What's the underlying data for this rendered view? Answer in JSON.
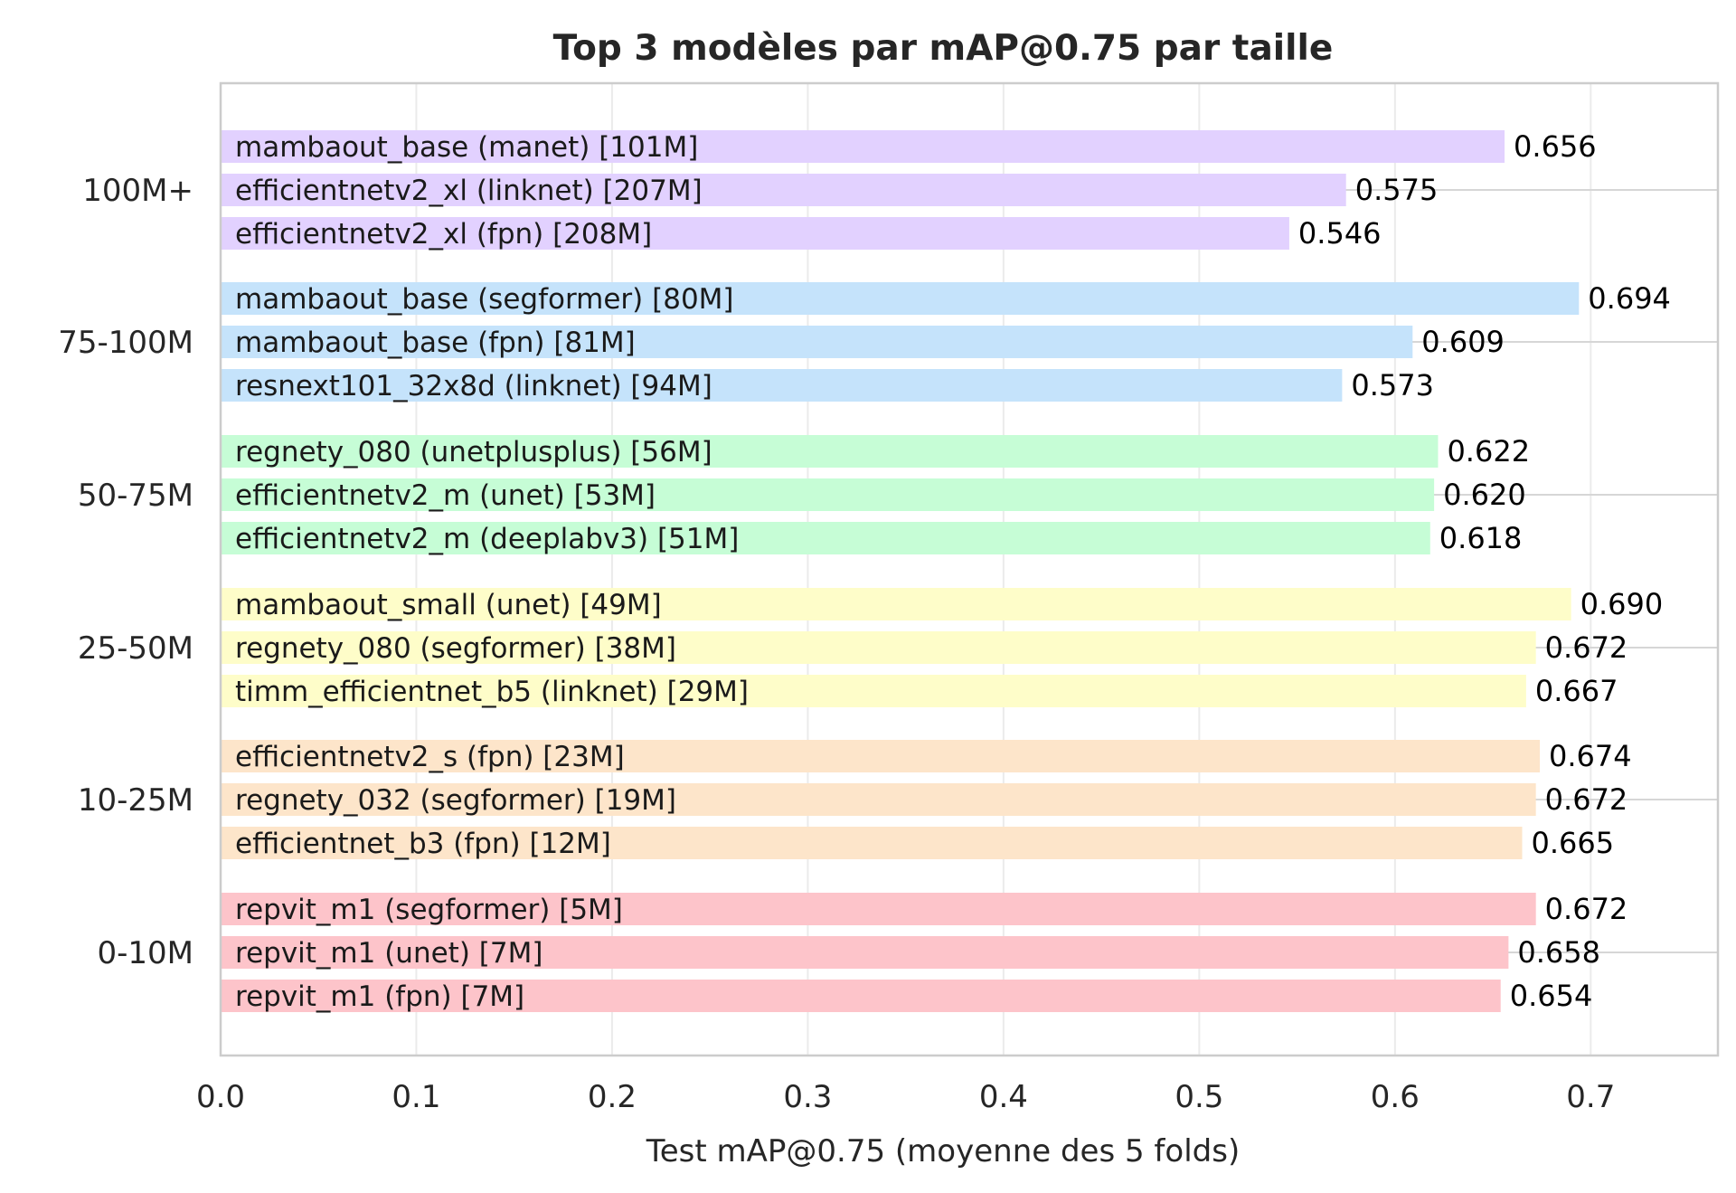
{
  "chart_data": {
    "type": "bar",
    "orientation": "horizontal",
    "title": "Top 3 modèles par mAP@0.75 par taille",
    "xlabel": "Test mAP@0.75 (moyenne des 5 folds)",
    "ylabel": "",
    "xlim": [
      0,
      0.765
    ],
    "xticks": [
      "0.0",
      "0.1",
      "0.2",
      "0.3",
      "0.4",
      "0.5",
      "0.6",
      "0.7"
    ],
    "grid": true,
    "legend": "none",
    "groups": [
      {
        "name": "100M+",
        "color": "#e2d1ff",
        "bars": [
          {
            "label": "mambaout_base (manet) [101M]",
            "value": 0.656,
            "value_text": "0.656"
          },
          {
            "label": "efficientnetv2_xl (linknet) [207M]",
            "value": 0.575,
            "value_text": "0.575"
          },
          {
            "label": "efficientnetv2_xl (fpn) [208M]",
            "value": 0.546,
            "value_text": "0.546"
          }
        ]
      },
      {
        "name": "75-100M",
        "color": "#c5e3fb",
        "bars": [
          {
            "label": "mambaout_base (segformer) [80M]",
            "value": 0.694,
            "value_text": "0.694"
          },
          {
            "label": "mambaout_base (fpn) [81M]",
            "value": 0.609,
            "value_text": "0.609"
          },
          {
            "label": "resnext101_32x8d (linknet) [94M]",
            "value": 0.573,
            "value_text": "0.573"
          }
        ]
      },
      {
        "name": "50-75M",
        "color": "#c6fdd6",
        "bars": [
          {
            "label": "regnety_080 (unetplusplus) [56M]",
            "value": 0.622,
            "value_text": "0.622"
          },
          {
            "label": "efficientnetv2_m (unet) [53M]",
            "value": 0.62,
            "value_text": "0.620"
          },
          {
            "label": "efficientnetv2_m (deeplabv3) [51M]",
            "value": 0.618,
            "value_text": "0.618"
          }
        ]
      },
      {
        "name": "25-50M",
        "color": "#fefdc9",
        "bars": [
          {
            "label": "mambaout_small (unet) [49M]",
            "value": 0.69,
            "value_text": "0.690"
          },
          {
            "label": "regnety_080 (segformer) [38M]",
            "value": 0.672,
            "value_text": "0.672"
          },
          {
            "label": "timm_efficientnet_b5 (linknet) [29M]",
            "value": 0.667,
            "value_text": "0.667"
          }
        ]
      },
      {
        "name": "10-25M",
        "color": "#fde5ca",
        "bars": [
          {
            "label": "efficientnetv2_s (fpn) [23M]",
            "value": 0.674,
            "value_text": "0.674"
          },
          {
            "label": "regnety_032 (segformer) [19M]",
            "value": 0.672,
            "value_text": "0.672"
          },
          {
            "label": "efficientnet_b3 (fpn) [12M]",
            "value": 0.665,
            "value_text": "0.665"
          }
        ]
      },
      {
        "name": "0-10M",
        "color": "#fdc4ca",
        "bars": [
          {
            "label": "repvit_m1 (segformer) [5M]",
            "value": 0.672,
            "value_text": "0.672"
          },
          {
            "label": "repvit_m1 (unet) [7M]",
            "value": 0.658,
            "value_text": "0.658"
          },
          {
            "label": "repvit_m1 (fpn) [7M]",
            "value": 0.654,
            "value_text": "0.654"
          }
        ]
      }
    ]
  }
}
